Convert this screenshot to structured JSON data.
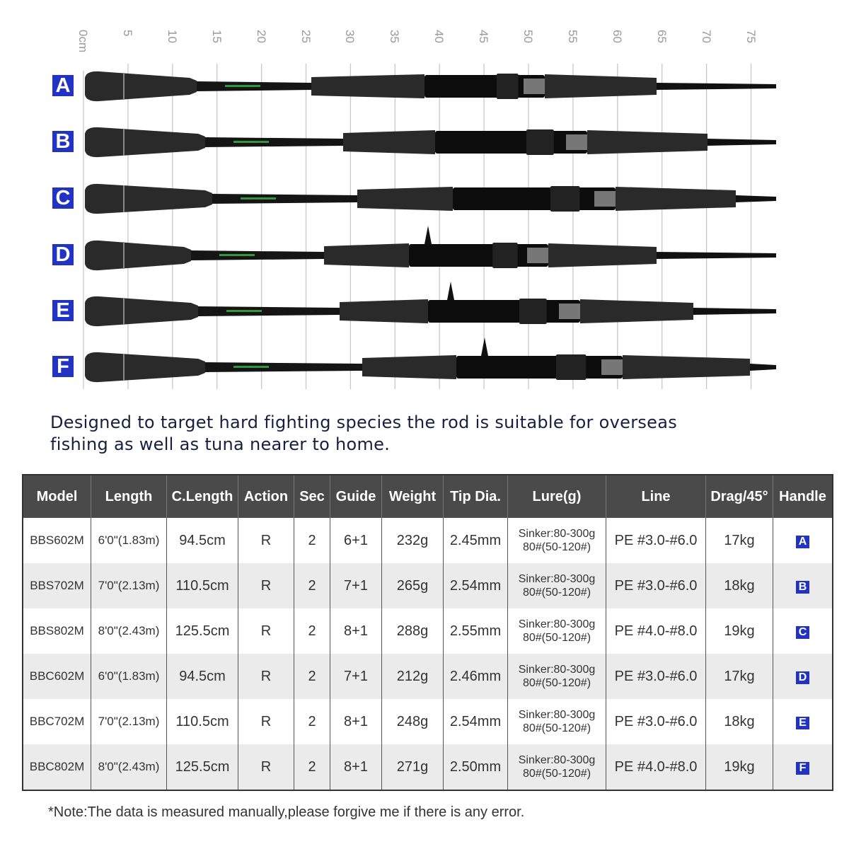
{
  "ruler": {
    "unit_label": "0cm",
    "ticks": [
      "5",
      "10",
      "15",
      "20",
      "25",
      "30",
      "35",
      "40",
      "45",
      "50",
      "55",
      "60",
      "65",
      "70",
      "75"
    ]
  },
  "rods": [
    {
      "label": "A",
      "type": "spinning"
    },
    {
      "label": "B",
      "type": "spinning"
    },
    {
      "label": "C",
      "type": "spinning"
    },
    {
      "label": "D",
      "type": "casting"
    },
    {
      "label": "E",
      "type": "casting"
    },
    {
      "label": "F",
      "type": "casting"
    }
  ],
  "description": {
    "line1": "Designed to target hard fighting species the rod is suitable for overseas",
    "line2": "fishing as well as tuna nearer to home."
  },
  "table": {
    "headers": [
      "Model",
      "Length",
      "C.Length",
      "Action",
      "Sec",
      "Guide",
      "Weight",
      "Tip Dia.",
      "Lure(g)",
      "Line",
      "Drag/45°",
      "Handle"
    ],
    "rows": [
      {
        "model": "BBS602M",
        "length": "6'0\"(1.83m)",
        "clength": "94.5cm",
        "action": "R",
        "sec": "2",
        "guide": "6+1",
        "weight": "232g",
        "tip": "2.45mm",
        "lure1": "Sinker:80-300g",
        "lure2": "80#(50-120#)",
        "line": "PE #3.0-#6.0",
        "drag": "17kg",
        "handle": "A"
      },
      {
        "model": "BBS702M",
        "length": "7'0\"(2.13m)",
        "clength": "110.5cm",
        "action": "R",
        "sec": "2",
        "guide": "7+1",
        "weight": "265g",
        "tip": "2.54mm",
        "lure1": "Sinker:80-300g",
        "lure2": "80#(50-120#)",
        "line": "PE #3.0-#6.0",
        "drag": "18kg",
        "handle": "B"
      },
      {
        "model": "BBS802M",
        "length": "8'0\"(2.43m)",
        "clength": "125.5cm",
        "action": "R",
        "sec": "2",
        "guide": "8+1",
        "weight": "288g",
        "tip": "2.55mm",
        "lure1": "Sinker:80-300g",
        "lure2": "80#(50-120#)",
        "line": "PE #4.0-#8.0",
        "drag": "19kg",
        "handle": "C"
      },
      {
        "model": "BBC602M",
        "length": "6'0\"(1.83m)",
        "clength": "94.5cm",
        "action": "R",
        "sec": "2",
        "guide": "7+1",
        "weight": "212g",
        "tip": "2.46mm",
        "lure1": "Sinker:80-300g",
        "lure2": "80#(50-120#)",
        "line": "PE #3.0-#6.0",
        "drag": "17kg",
        "handle": "D"
      },
      {
        "model": "BBC702M",
        "length": "7'0\"(2.13m)",
        "clength": "110.5cm",
        "action": "R",
        "sec": "2",
        "guide": "8+1",
        "weight": "248g",
        "tip": "2.54mm",
        "lure1": "Sinker:80-300g",
        "lure2": "80#(50-120#)",
        "line": "PE #3.0-#6.0",
        "drag": "18kg",
        "handle": "E"
      },
      {
        "model": "BBC802M",
        "length": "8'0\"(2.43m)",
        "clength": "125.5cm",
        "action": "R",
        "sec": "2",
        "guide": "8+1",
        "weight": "271g",
        "tip": "2.50mm",
        "lure1": "Sinker:80-300g",
        "lure2": "80#(50-120#)",
        "line": "PE #4.0-#8.0",
        "drag": "19kg",
        "handle": "F"
      }
    ]
  },
  "note": "*Note:The data is measured manually,please forgive me if there is any error.",
  "colors": {
    "badge": "#2233c4",
    "header_bg": "#4a4a4a",
    "alt_row": "#ebebeb",
    "accent_green": "#3ecf4a"
  }
}
